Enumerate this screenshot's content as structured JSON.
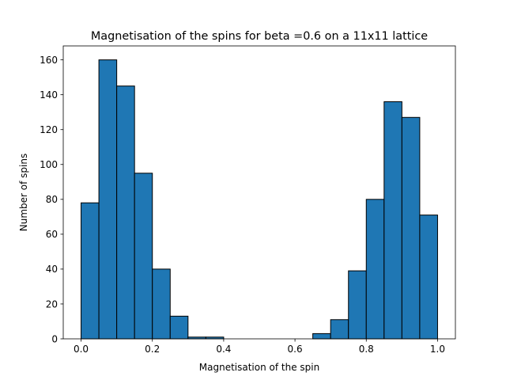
{
  "chart_data": {
    "type": "bar",
    "title": "Magnetisation of the spins for beta =0.6 on a 11x11 lattice",
    "xlabel": "Magnetisation of the spin",
    "ylabel": "Number of spins",
    "xlim": [
      -0.05,
      1.05
    ],
    "ylim": [
      0,
      168
    ],
    "xticks": [
      0.0,
      0.2,
      0.4,
      0.6,
      0.8,
      1.0
    ],
    "xtick_labels": [
      "0.0",
      "0.2",
      "0.4",
      "0.6",
      "0.8",
      "1.0"
    ],
    "yticks": [
      0,
      20,
      40,
      60,
      80,
      100,
      120,
      140,
      160
    ],
    "ytick_labels": [
      "0",
      "20",
      "40",
      "60",
      "80",
      "100",
      "120",
      "140",
      "160"
    ],
    "bin_edges": [
      0.0,
      0.05,
      0.1,
      0.15,
      0.2,
      0.25,
      0.3,
      0.35,
      0.4,
      0.45,
      0.5,
      0.55,
      0.6,
      0.65,
      0.7,
      0.75,
      0.8,
      0.85,
      0.9,
      0.95,
      1.0
    ],
    "values": [
      78,
      160,
      145,
      95,
      40,
      13,
      1,
      1,
      0,
      0,
      0,
      0,
      0,
      3,
      11,
      39,
      80,
      136,
      127,
      71
    ],
    "bar_color": "#1f77b4",
    "edge_color": "#000000",
    "grid": false
  }
}
